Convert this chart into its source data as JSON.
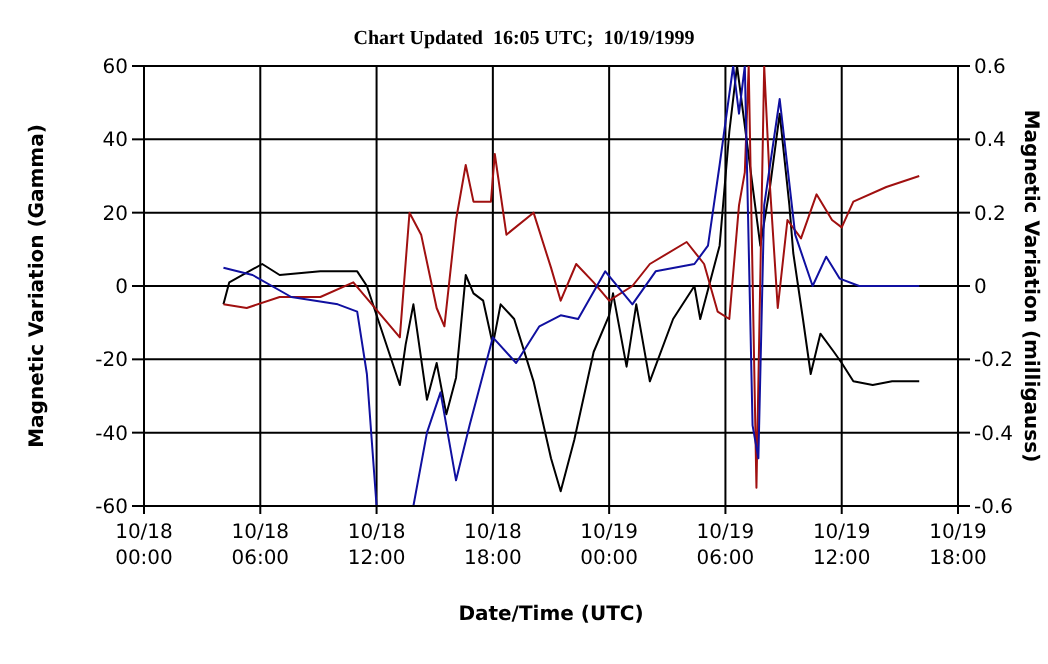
{
  "chart_data": {
    "type": "line",
    "title": "Chart Updated  16:05 UTC;  10/19/1999",
    "xlabel": "Date/Time (UTC)",
    "ylabel": "Magnetic Variation (Gamma)",
    "y2label": "Magnetic Variation (milligauss)",
    "xlim": [
      "1999-10-18T00:00",
      "1999-10-19T18:00"
    ],
    "xticks": [
      {
        "value": "1999-10-18T00:00",
        "label": "10/18 00:00"
      },
      {
        "value": "1999-10-18T06:00",
        "label": "10/18 06:00"
      },
      {
        "value": "1999-10-18T12:00",
        "label": "10/18 12:00"
      },
      {
        "value": "1999-10-18T18:00",
        "label": "10/18 18:00"
      },
      {
        "value": "1999-10-19T00:00",
        "label": "10/19 00:00"
      },
      {
        "value": "1999-10-19T06:00",
        "label": "10/19 06:00"
      },
      {
        "value": "1999-10-19T12:00",
        "label": "10/19 12:00"
      },
      {
        "value": "1999-10-19T18:00",
        "label": "10/19 18:00"
      }
    ],
    "ylim": [
      -60,
      60
    ],
    "yticks": [
      -60,
      -40,
      -20,
      0,
      20,
      40,
      60
    ],
    "y2lim": [
      -0.6,
      0.6
    ],
    "y2ticks": [
      -0.6,
      -0.4,
      -0.2,
      0,
      0.2,
      0.4,
      0.6
    ],
    "grid": true,
    "marker": "none",
    "line_style": "solid",
    "series": [
      {
        "color": "#000000",
        "x": [
          "1999-10-18T04:06",
          "1999-10-18T04:24",
          "1999-10-18T06:06",
          "1999-10-18T07:00",
          "1999-10-18T09:06",
          "1999-10-18T10:06",
          "1999-10-18T11:00",
          "1999-10-18T11:30",
          "1999-10-18T13:12",
          "1999-10-18T13:30",
          "1999-10-18T13:54",
          "1999-10-18T14:36",
          "1999-10-18T15:06",
          "1999-10-18T15:36",
          "1999-10-18T16:06",
          "1999-10-18T16:36",
          "1999-10-18T17:00",
          "1999-10-18T17:30",
          "1999-10-18T18:00",
          "1999-10-18T18:24",
          "1999-10-18T19:06",
          "1999-10-18T20:06",
          "1999-10-18T21:00",
          "1999-10-18T21:30",
          "1999-10-18T22:12",
          "1999-10-18T23:12",
          "1999-10-19T00:00",
          "1999-10-19T00:12",
          "1999-10-19T00:54",
          "1999-10-19T01:24",
          "1999-10-19T02:06",
          "1999-10-19T03:18",
          "1999-10-19T04:24",
          "1999-10-19T04:42",
          "1999-10-19T05:42",
          "1999-10-19T06:12",
          "1999-10-19T06:36",
          "1999-10-19T07:48",
          "1999-10-19T08:18",
          "1999-10-19T08:48",
          "1999-10-19T09:18",
          "1999-10-19T09:30",
          "1999-10-19T10:00",
          "1999-10-19T10:24",
          "1999-10-19T10:54",
          "1999-10-19T11:36",
          "1999-10-19T12:00",
          "1999-10-19T12:36",
          "1999-10-19T13:36",
          "1999-10-19T14:36",
          "1999-10-19T16:00"
        ],
        "values": [
          -5,
          1,
          6,
          3,
          4,
          4,
          4,
          0,
          -27,
          -16,
          -5,
          -31,
          -21,
          -35,
          -25,
          3,
          -2,
          -4,
          -16,
          -5,
          -9,
          -26,
          -47,
          -56,
          -42,
          -18,
          -8,
          -2,
          -22,
          -5,
          -26,
          -9,
          0,
          -9,
          11,
          42,
          60,
          11,
          27,
          47,
          22,
          9,
          -9,
          -24,
          -13,
          -18,
          -21,
          -26,
          -27,
          -26,
          -26
        ]
      },
      {
        "color": "#a01010",
        "x": [
          "1999-10-18T04:06",
          "1999-10-18T05:18",
          "1999-10-18T07:00",
          "1999-10-18T09:06",
          "1999-10-18T10:48",
          "1999-10-18T13:12",
          "1999-10-18T13:42",
          "1999-10-18T14:18",
          "1999-10-18T15:06",
          "1999-10-18T15:30",
          "1999-10-18T16:06",
          "1999-10-18T16:36",
          "1999-10-18T17:00",
          "1999-10-18T17:54",
          "1999-10-18T18:06",
          "1999-10-18T18:42",
          "1999-10-18T20:06",
          "1999-10-18T21:00",
          "1999-10-18T21:30",
          "1999-10-18T22:18",
          "1999-10-18T23:12",
          "1999-10-19T00:00",
          "1999-10-19T01:12",
          "1999-10-19T02:06",
          "1999-10-19T04:00",
          "1999-10-19T04:54",
          "1999-10-19T05:36",
          "1999-10-19T06:12",
          "1999-10-19T06:42",
          "1999-10-19T07:00",
          "1999-10-19T07:12",
          "1999-10-19T07:36",
          "1999-10-19T08:00",
          "1999-10-19T08:18",
          "1999-10-19T08:42",
          "1999-10-19T09:12",
          "1999-10-19T09:54",
          "1999-10-19T10:42",
          "1999-10-19T11:30",
          "1999-10-19T12:00",
          "1999-10-19T12:36",
          "1999-10-19T14:18",
          "1999-10-19T16:00"
        ],
        "values": [
          -5,
          -6,
          -3,
          -3,
          1,
          -14,
          20,
          14,
          -6,
          -11,
          18,
          33,
          23,
          23,
          36,
          14,
          20,
          5,
          -4,
          6,
          1,
          -4,
          0,
          6,
          12,
          6,
          -7,
          -9,
          22,
          31,
          60,
          -55,
          60,
          27,
          -6,
          18,
          13,
          25,
          18,
          16,
          23,
          27,
          30
        ]
      },
      {
        "color": "#1010a0",
        "x": [
          "1999-10-18T04:06",
          "1999-10-18T05:36",
          "1999-10-18T07:36",
          "1999-10-18T10:00",
          "1999-10-18T11:00",
          "1999-10-18T11:30",
          "1999-10-18T12:00",
          "1999-10-18T13:54",
          "1999-10-18T14:36",
          "1999-10-18T15:18",
          "1999-10-18T16:06",
          "1999-10-18T16:48",
          "1999-10-18T17:30",
          "1999-10-18T18:00",
          "1999-10-18T19:12",
          "1999-10-18T20:24",
          "1999-10-18T21:30",
          "1999-10-18T22:24",
          "1999-10-18T23:48",
          "1999-10-19T01:12",
          "1999-10-19T02:24",
          "1999-10-19T04:24",
          "1999-10-19T05:06",
          "1999-10-19T05:42",
          "1999-10-19T06:24",
          "1999-10-19T06:42",
          "1999-10-19T07:00",
          "1999-10-19T07:24",
          "1999-10-19T07:42",
          "1999-10-19T08:00",
          "1999-10-19T08:48",
          "1999-10-19T09:36",
          "1999-10-19T10:30",
          "1999-10-19T11:12",
          "1999-10-19T11:54",
          "1999-10-19T12:54",
          "1999-10-19T16:00"
        ],
        "values": [
          5,
          3,
          -3,
          -5,
          -7,
          -24,
          -60,
          -60,
          -40,
          -29,
          -53,
          -38,
          -24,
          -14,
          -21,
          -11,
          -8,
          -9,
          4,
          -5,
          4,
          6,
          11,
          33,
          60,
          47,
          60,
          -38,
          -47,
          22,
          51,
          14,
          0,
          8,
          2,
          0,
          0
        ]
      }
    ]
  }
}
